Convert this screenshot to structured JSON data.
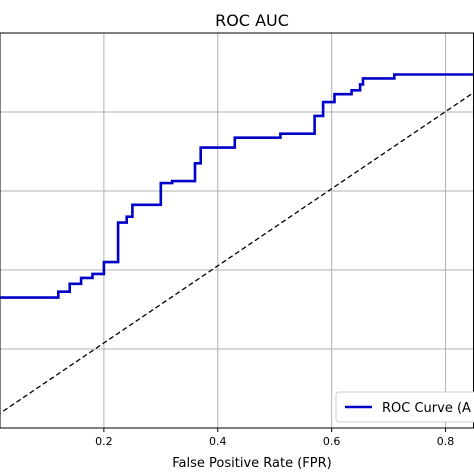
{
  "chart_data": {
    "type": "line",
    "title": "ROC AUC",
    "xlabel": "False Positive Rate (FPR)",
    "ylabel": "",
    "xlim": [
      0.0,
      0.85
    ],
    "ylim": [
      0.0,
      1.0
    ],
    "xticks": [
      0.2,
      0.4,
      0.6,
      0.8
    ],
    "xtick_labels": [
      "0.2",
      "0.4",
      "0.6",
      "0.8"
    ],
    "yticks": [
      0.2,
      0.4,
      0.6,
      0.8,
      1.0
    ],
    "grid": true,
    "legend_position": "bottom-right",
    "series": [
      {
        "name": "ROC Curve (A",
        "color": "#0000c8",
        "x": [
          0.0,
          0.12,
          0.12,
          0.14,
          0.14,
          0.16,
          0.16,
          0.18,
          0.18,
          0.2,
          0.2,
          0.225,
          0.225,
          0.24,
          0.24,
          0.25,
          0.25,
          0.3,
          0.3,
          0.32,
          0.32,
          0.36,
          0.36,
          0.37,
          0.37,
          0.39,
          0.39,
          0.43,
          0.43,
          0.51,
          0.51,
          0.57,
          0.57,
          0.585,
          0.585,
          0.605,
          0.605,
          0.635,
          0.635,
          0.65,
          0.65,
          0.655,
          0.655,
          0.71,
          0.71,
          0.85
        ],
        "y": [
          0.33,
          0.33,
          0.345,
          0.345,
          0.365,
          0.365,
          0.38,
          0.38,
          0.39,
          0.39,
          0.42,
          0.42,
          0.52,
          0.52,
          0.535,
          0.535,
          0.565,
          0.565,
          0.62,
          0.62,
          0.625,
          0.625,
          0.67,
          0.67,
          0.71,
          0.71,
          0.71,
          0.71,
          0.735,
          0.735,
          0.745,
          0.745,
          0.79,
          0.79,
          0.825,
          0.825,
          0.845,
          0.845,
          0.855,
          0.855,
          0.87,
          0.87,
          0.885,
          0.885,
          0.895,
          0.895
        ]
      },
      {
        "name": "",
        "color": "#000000",
        "style": "dashed",
        "x": [
          0.0,
          0.85
        ],
        "y": [
          0.02,
          0.85
        ]
      }
    ]
  }
}
